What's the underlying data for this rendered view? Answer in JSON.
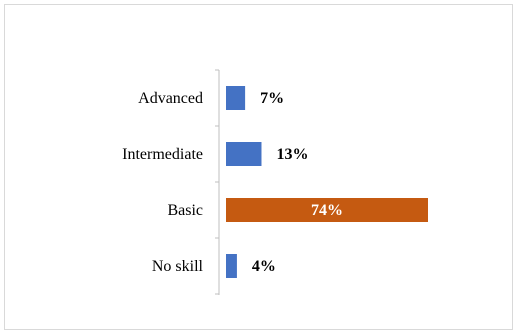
{
  "chart_data": {
    "type": "bar",
    "orientation": "horizontal",
    "categories": [
      "Advanced",
      "Intermediate",
      "Basic",
      "No skill"
    ],
    "values": [
      7,
      13,
      74,
      4
    ],
    "value_labels": [
      "7%",
      "13%",
      "74%",
      "4%"
    ],
    "unit": "%",
    "title": "",
    "xlabel": "",
    "ylabel": "",
    "xlim": [
      0,
      74
    ],
    "grid": false,
    "legend": "none",
    "colors": {
      "default": "#4472C4",
      "highlight": "#C55A11",
      "highlight_category": "Basic",
      "axis": "#bfbfbf",
      "border": "#d9d9d9",
      "label_inside": "#ffffff",
      "label_outside": "#000000"
    }
  }
}
